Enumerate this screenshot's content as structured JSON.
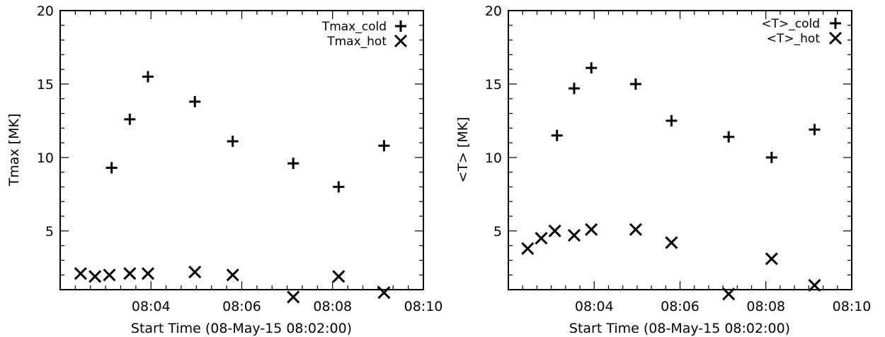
{
  "chart_data": [
    {
      "type": "scatter",
      "xlabel": "Start Time (08-May-15 08:02:00)",
      "ylabel": "Tmax [MK]",
      "xlim": [
        "08:02:00",
        "08:10:00"
      ],
      "ylim": [
        1,
        20
      ],
      "x_tick_labels": [
        "08:04",
        "08:06",
        "08:08",
        "08:10"
      ],
      "y_tick_labels": [
        "5",
        "10",
        "15",
        "20"
      ],
      "legend_position": "top-right",
      "series": [
        {
          "name": "Tmax_cold",
          "marker": "plus",
          "points": [
            {
              "x": "08:03:08",
              "y": 9.3
            },
            {
              "x": "08:03:32",
              "y": 12.6
            },
            {
              "x": "08:03:56",
              "y": 15.5
            },
            {
              "x": "08:04:58",
              "y": 13.8
            },
            {
              "x": "08:05:48",
              "y": 11.1
            },
            {
              "x": "08:07:08",
              "y": 9.6
            },
            {
              "x": "08:08:08",
              "y": 8.0
            },
            {
              "x": "08:09:08",
              "y": 10.8
            }
          ]
        },
        {
          "name": "Tmax_hot",
          "marker": "cross",
          "points": [
            {
              "x": "08:02:27",
              "y": 2.1
            },
            {
              "x": "08:02:46",
              "y": 1.9
            },
            {
              "x": "08:03:05",
              "y": 2.0
            },
            {
              "x": "08:03:32",
              "y": 2.1
            },
            {
              "x": "08:03:56",
              "y": 2.1
            },
            {
              "x": "08:04:58",
              "y": 2.2
            },
            {
              "x": "08:05:48",
              "y": 2.0
            },
            {
              "x": "08:07:08",
              "y": 0.5
            },
            {
              "x": "08:08:08",
              "y": 1.9
            },
            {
              "x": "08:09:08",
              "y": 0.8
            }
          ]
        }
      ]
    },
    {
      "type": "scatter",
      "xlabel": "Start Time (08-May-15 08:02:00)",
      "ylabel": "<T> [MK]",
      "xlim": [
        "08:02:00",
        "08:10:00"
      ],
      "ylim": [
        1,
        20
      ],
      "x_tick_labels": [
        "08:04",
        "08:06",
        "08:08",
        "08:10"
      ],
      "y_tick_labels": [
        "5",
        "10",
        "15",
        "20"
      ],
      "legend_position": "top-right",
      "series": [
        {
          "name": "<T>_cold",
          "marker": "plus",
          "points": [
            {
              "x": "08:03:08",
              "y": 11.5
            },
            {
              "x": "08:03:32",
              "y": 14.7
            },
            {
              "x": "08:03:56",
              "y": 16.1
            },
            {
              "x": "08:04:58",
              "y": 15.0
            },
            {
              "x": "08:05:48",
              "y": 12.5
            },
            {
              "x": "08:07:08",
              "y": 11.4
            },
            {
              "x": "08:08:08",
              "y": 10.0
            },
            {
              "x": "08:09:08",
              "y": 11.9
            }
          ]
        },
        {
          "name": "<T>_hot",
          "marker": "cross",
          "points": [
            {
              "x": "08:02:27",
              "y": 3.8
            },
            {
              "x": "08:02:46",
              "y": 4.5
            },
            {
              "x": "08:03:05",
              "y": 5.0
            },
            {
              "x": "08:03:32",
              "y": 4.7
            },
            {
              "x": "08:03:56",
              "y": 5.1
            },
            {
              "x": "08:04:58",
              "y": 5.1
            },
            {
              "x": "08:05:48",
              "y": 4.2
            },
            {
              "x": "08:07:08",
              "y": 0.7
            },
            {
              "x": "08:08:08",
              "y": 3.1
            },
            {
              "x": "08:09:08",
              "y": 1.3
            }
          ]
        }
      ]
    }
  ]
}
